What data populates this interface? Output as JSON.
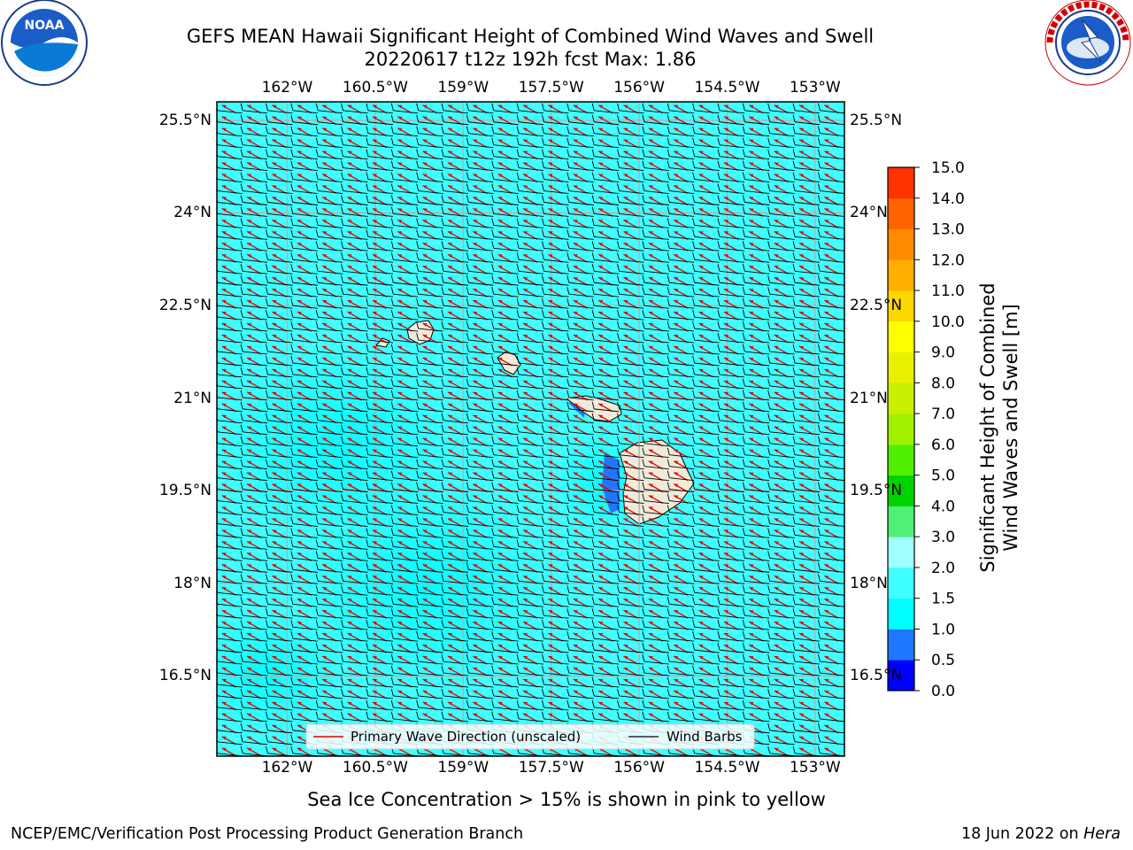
{
  "title": {
    "line1": "GEFS MEAN Hawaii Significant Height of Combined Wind Waves and Swell",
    "line2": "20220617 t12z 192h fcst   Max: 1.86"
  },
  "logos": {
    "left": {
      "icon": "noaa-logo",
      "text": "NOAA",
      "ring_text": "NATIONAL OCEANIC AND ATMOSPHERIC ADMINISTRATION · U.S. DEPARTMENT OF COMMERCE"
    },
    "right": {
      "icon": "nws-logo",
      "ring_text": "NATIONAL WEATHER SERVICE"
    }
  },
  "axes": {
    "lon_ticks": [
      "162°W",
      "160.5°W",
      "159°W",
      "157.5°W",
      "156°W",
      "154.5°W",
      "153°W"
    ],
    "lat_ticks": [
      "25.5°N",
      "24°N",
      "22.5°N",
      "21°N",
      "19.5°N",
      "18°N",
      "16.5°N"
    ],
    "lon_values": [
      -162,
      -160.5,
      -159,
      -157.5,
      -156,
      -154.5,
      -153
    ],
    "lat_values": [
      25.5,
      24,
      22.5,
      21,
      19.5,
      18,
      16.5
    ],
    "lon_range": [
      -163.2,
      -152.5
    ],
    "lat_range": [
      15.2,
      25.8
    ]
  },
  "legend": {
    "wave_direction": "Primary Wave Direction (unscaled)",
    "wind_barbs": "Wind Barbs"
  },
  "colorbar": {
    "label_line1": "Significant Height of Combined",
    "label_line2": "Wind Waves and Swell [m]",
    "ticks": [
      "0.0",
      "0.5",
      "1.0",
      "1.5",
      "2.0",
      "3.0",
      "4.0",
      "5.0",
      "6.0",
      "7.0",
      "8.0",
      "9.0",
      "10.0",
      "11.0",
      "12.0",
      "13.0",
      "14.0",
      "15.0"
    ],
    "colors": [
      "#0000ff",
      "#1e78ff",
      "#00ffff",
      "#40ffff",
      "#a0ffff",
      "#50f078",
      "#00d200",
      "#50f000",
      "#a0f000",
      "#c8f000",
      "#e6f000",
      "#ffff00",
      "#ffd700",
      "#ffaf00",
      "#ff8c00",
      "#ff6400",
      "#ff3200",
      "#ff0000"
    ]
  },
  "field_colors": {
    "background": "#40ffff",
    "low": "#00ffff",
    "land": "#efebda",
    "shore": "#1e78ff",
    "arrow": "#e00000",
    "barb": "#000000",
    "ice": "#ffc0cb"
  },
  "caption": "Sea Ice Concentration > 15% is shown in pink to yellow",
  "footer": {
    "left": "NCEP/EMC/Verification Post Processing Product Generation Branch",
    "right_prefix": "18 Jun 2022 on ",
    "right_machine": "Hera"
  }
}
